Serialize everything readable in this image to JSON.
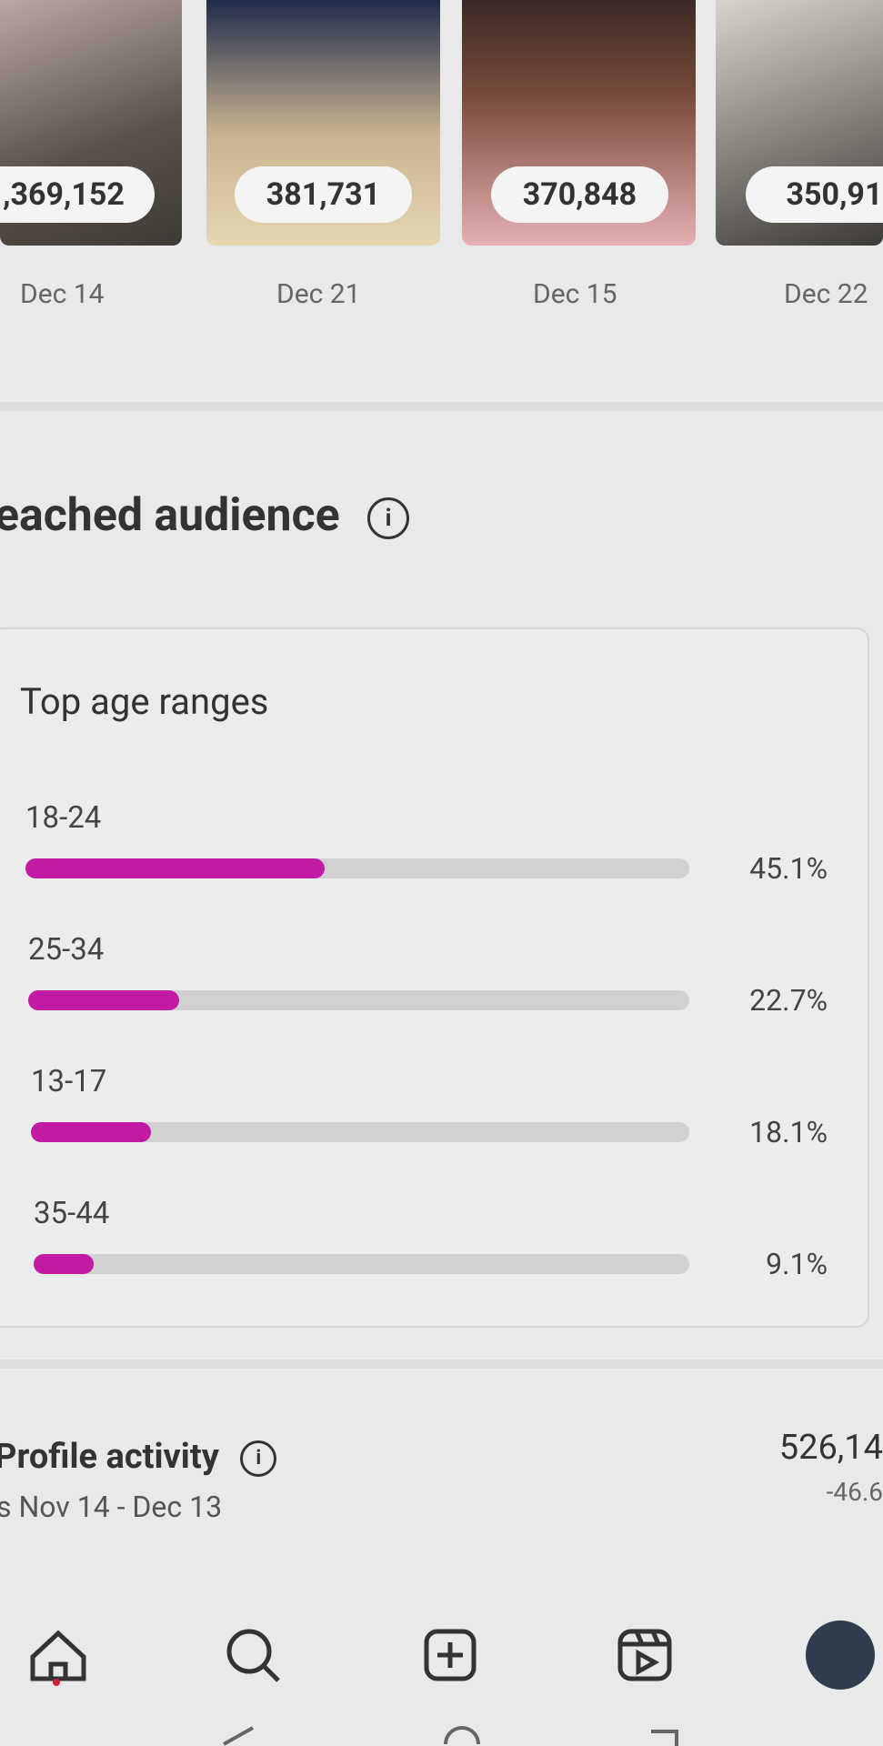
{
  "thumbnails": [
    {
      "count": ",369,152",
      "date": "Dec 14"
    },
    {
      "count": "381,731",
      "date": "Dec 21"
    },
    {
      "count": "370,848",
      "date": "Dec 15"
    },
    {
      "count": "350,91",
      "date": "Dec 22"
    }
  ],
  "section_title": "eached audience",
  "age_chart": {
    "type": "bar",
    "title": "Top age ranges",
    "categories": [
      "18-24",
      "25-34",
      "13-17",
      "35-44"
    ],
    "values": [
      45.1,
      22.7,
      18.1,
      9.1
    ],
    "value_labels": [
      "45.1%",
      "22.7%",
      "18.1%",
      "9.1%"
    ],
    "color": "#c21aa5",
    "xlim": [
      0,
      100
    ]
  },
  "profile_activity": {
    "title": "Profile activity",
    "subtitle": "s Nov 14 - Dec 13",
    "value": "526,14",
    "change": "-46.6"
  }
}
